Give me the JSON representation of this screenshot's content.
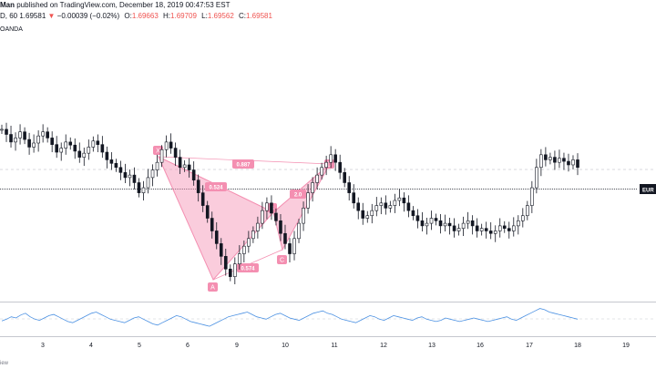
{
  "header": {
    "author": "Man",
    "published": "published on TradingView.com, December 18, 2019 00:47:53 EST",
    "symbol": "D, 60",
    "price": "1.69581",
    "arrow": "▼",
    "change": "−0.00039 (−0.02%)",
    "o_label": "O:",
    "o_val": "1.69663",
    "h_label": "H:",
    "h_val": "1.69709",
    "l_label": "L:",
    "l_val": "1.69562",
    "c_label": "C:",
    "c_val": "1.69581",
    "broker": "OANDA"
  },
  "price_tag": "EUR",
  "footer_text": "iew",
  "colors": {
    "pattern": "#f48fb1",
    "pattern_label": "#f48fb1",
    "candle": "#131722",
    "rsi": "#4a90e2",
    "neg": "#ef5350"
  },
  "chart_data": {
    "type": "candlestick",
    "x_ticks": [
      "3",
      "4",
      "5",
      "6",
      "9",
      "10",
      "11",
      "12",
      "13",
      "16",
      "17",
      "18",
      "19"
    ],
    "pattern_points": [
      "X",
      "A",
      "B",
      "C",
      "D"
    ],
    "ratios": [
      "0.887",
      "0.524",
      "0.574",
      "2.0"
    ],
    "close_series": [
      1.7135,
      1.7125,
      1.711,
      1.7118,
      1.713,
      1.7115,
      1.71,
      1.7108,
      1.7122,
      1.713,
      1.7118,
      1.7105,
      1.709,
      1.7098,
      1.711,
      1.7104,
      1.7092,
      1.708,
      1.7088,
      1.71,
      1.7112,
      1.7105,
      1.709,
      1.7075,
      1.7068,
      1.706,
      1.705,
      1.704,
      1.7045,
      1.703,
      1.701,
      1.702,
      1.704,
      1.7055,
      1.707,
      1.7095,
      1.711,
      1.7098,
      1.708,
      1.706,
      1.7065,
      1.7055,
      1.7035,
      1.701,
      1.6985,
      1.696,
      1.6935,
      1.691,
      1.6885,
      1.686,
      1.6845,
      1.687,
      1.689,
      1.6905,
      1.692,
      1.6935,
      1.695,
      1.6975,
      1.699,
      1.697,
      1.6955,
      1.693,
      1.691,
      1.689,
      1.692,
      1.695,
      1.698,
      1.701,
      1.703,
      1.7045,
      1.706,
      1.707,
      1.7085,
      1.707,
      1.705,
      1.703,
      1.701,
      1.699,
      1.6975,
      1.696,
      1.6965,
      1.6975,
      1.6985,
      1.699,
      1.698,
      1.6985,
      1.6995,
      1.7,
      1.699,
      1.6975,
      1.6965,
      1.6955,
      1.6945,
      1.695,
      1.696,
      1.6955,
      1.6945,
      1.695,
      1.6945,
      1.6935,
      1.694,
      1.695,
      1.6955,
      1.6945,
      1.6935,
      1.694,
      1.6935,
      1.693,
      1.6935,
      1.6945,
      1.694,
      1.6935,
      1.6945,
      1.6955,
      1.6965,
      1.6985,
      1.702,
      1.706,
      1.7085,
      1.7075,
      1.708,
      1.707,
      1.7078,
      1.7072,
      1.7065,
      1.7075,
      1.706
    ],
    "rsi_series": [
      45,
      48,
      52,
      50,
      55,
      58,
      52,
      48,
      46,
      50,
      54,
      56,
      52,
      48,
      44,
      42,
      46,
      50,
      54,
      58,
      60,
      56,
      52,
      48,
      46,
      44,
      42,
      46,
      50,
      52,
      48,
      44,
      40,
      38,
      42,
      46,
      50,
      54,
      52,
      48,
      44,
      42,
      40,
      38,
      36,
      40,
      44,
      48,
      52,
      54,
      56,
      58,
      60,
      56,
      52,
      50,
      48,
      52,
      56,
      58,
      54,
      50,
      48,
      46,
      50,
      54,
      58,
      60,
      62,
      58,
      56,
      52,
      48,
      46,
      44,
      42,
      46,
      50,
      54,
      52,
      48,
      46,
      50,
      54,
      52,
      50,
      48,
      46,
      50,
      52,
      48,
      46,
      44,
      46,
      50,
      48,
      46,
      44,
      46,
      48,
      50,
      48,
      46,
      44,
      46,
      48,
      50,
      52,
      48,
      46,
      50,
      54,
      58,
      62,
      66,
      64,
      60,
      58,
      56,
      54,
      52,
      50,
      48
    ]
  }
}
